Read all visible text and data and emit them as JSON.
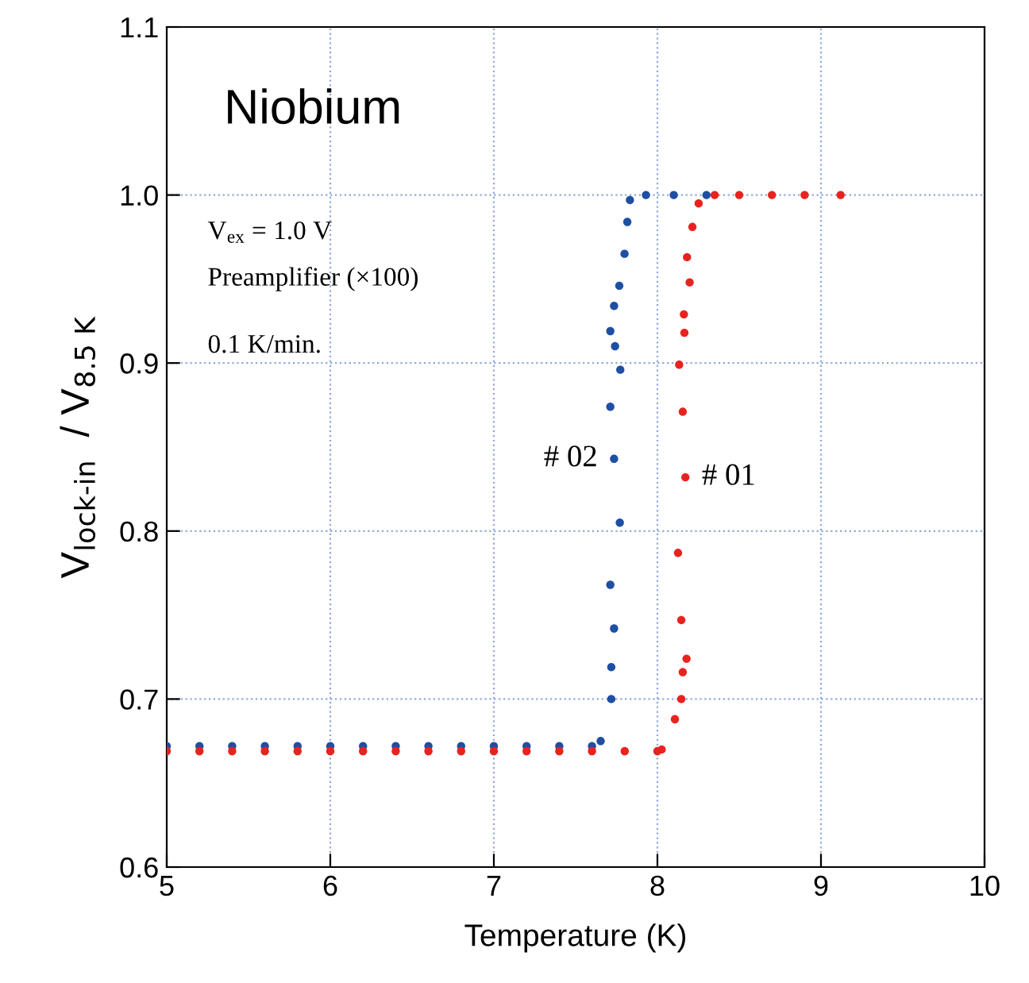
{
  "chart_data": {
    "type": "scatter",
    "title": "Niobium",
    "xlabel": "Temperature (K)",
    "ylabel": "V$_{lock-in}$  / V$_{8.5 K}$",
    "xlim": [
      5,
      10
    ],
    "ylim": [
      0.6,
      1.1
    ],
    "xticks": [
      5,
      6,
      7,
      8,
      9,
      10
    ],
    "yticks": [
      {
        "value": 0.6,
        "label": "0.6"
      },
      {
        "value": 0.7,
        "label": "0.7"
      },
      {
        "value": 0.8,
        "label": "0.8"
      },
      {
        "value": 0.9,
        "label": "0.9"
      },
      {
        "value": 1.0,
        "label": "1.0"
      },
      {
        "value": 1.1,
        "label": "1.1"
      }
    ],
    "grid": true,
    "marker": "circle",
    "annotations": [
      "V$_{ex}$ = 1.0 V",
      "Preamplifier (×100)",
      "0.1 K/min."
    ],
    "series": [
      {
        "name": "# 02",
        "color": "#1f4fa3",
        "x": [
          5.0,
          5.2,
          5.4,
          5.6,
          5.8,
          6.0,
          6.2,
          6.4,
          6.6,
          6.8,
          7.0,
          7.2,
          7.4,
          7.6,
          7.653,
          7.718,
          7.718,
          7.735,
          7.712,
          7.77,
          7.735,
          7.712,
          7.773,
          7.741,
          7.712,
          7.735,
          7.767,
          7.799,
          7.816,
          7.832,
          7.93,
          8.1,
          8.3
        ],
        "values": [
          0.672,
          0.672,
          0.672,
          0.672,
          0.672,
          0.672,
          0.672,
          0.672,
          0.672,
          0.672,
          0.672,
          0.672,
          0.672,
          0.672,
          0.675,
          0.7,
          0.719,
          0.742,
          0.768,
          0.805,
          0.843,
          0.874,
          0.896,
          0.91,
          0.919,
          0.934,
          0.946,
          0.965,
          0.984,
          0.997,
          1.0,
          1.0,
          1.0
        ]
      },
      {
        "name": "# 01",
        "color": "#e8231f",
        "x": [
          5.0,
          5.2,
          5.4,
          5.6,
          5.8,
          6.0,
          6.2,
          6.4,
          6.6,
          6.8,
          7.0,
          7.2,
          7.4,
          7.6,
          7.8,
          8.0,
          8.026,
          8.107,
          8.146,
          8.155,
          8.178,
          8.146,
          8.126,
          8.171,
          8.155,
          8.133,
          8.165,
          8.162,
          8.197,
          8.181,
          8.214,
          8.252,
          8.35,
          8.5,
          8.7,
          8.9,
          9.12
        ],
        "values": [
          0.669,
          0.669,
          0.669,
          0.669,
          0.669,
          0.669,
          0.669,
          0.669,
          0.669,
          0.669,
          0.669,
          0.669,
          0.669,
          0.669,
          0.669,
          0.669,
          0.67,
          0.688,
          0.7,
          0.716,
          0.724,
          0.747,
          0.787,
          0.832,
          0.871,
          0.899,
          0.918,
          0.929,
          0.948,
          0.963,
          0.981,
          0.995,
          1.0,
          1.0,
          1.0,
          1.0,
          1.0
        ]
      }
    ]
  }
}
